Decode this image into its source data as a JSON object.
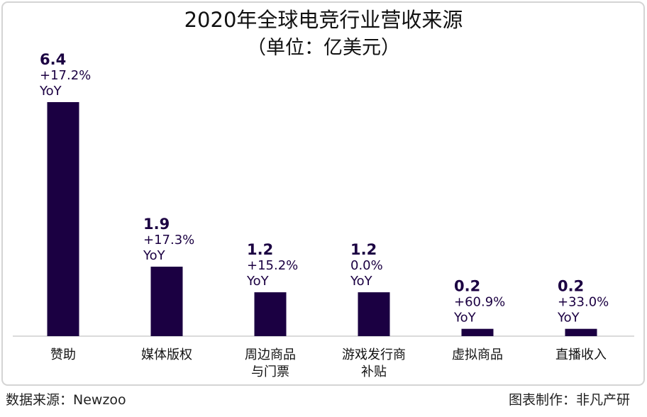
{
  "chart_data": {
    "type": "bar",
    "title": "2020年全球电竞行业营收来源",
    "subtitle": "（单位：亿美元）",
    "categories": [
      "赞助",
      "媒体版权",
      "周边商品\n与门票",
      "游戏发行商\n补贴",
      "虚拟商品",
      "直播收入"
    ],
    "values": [
      6.4,
      1.9,
      1.2,
      1.2,
      0.2,
      0.2
    ],
    "value_labels": [
      "6.4",
      "1.9",
      "1.2",
      "1.2",
      "0.2",
      "0.2"
    ],
    "yoy": [
      "+17.2%",
      "+17.3%",
      "+15.2%",
      "0.0%",
      "+60.9%",
      "+33.0%"
    ],
    "yoy_suffix": "YoY",
    "ylim": [
      0,
      6.4
    ],
    "grid": false,
    "bar_color": "#1b0042",
    "xlabel": "",
    "ylabel": ""
  },
  "footer": {
    "source": "数据来源：Newzoo",
    "credit": "图表制作：非凡产研"
  }
}
